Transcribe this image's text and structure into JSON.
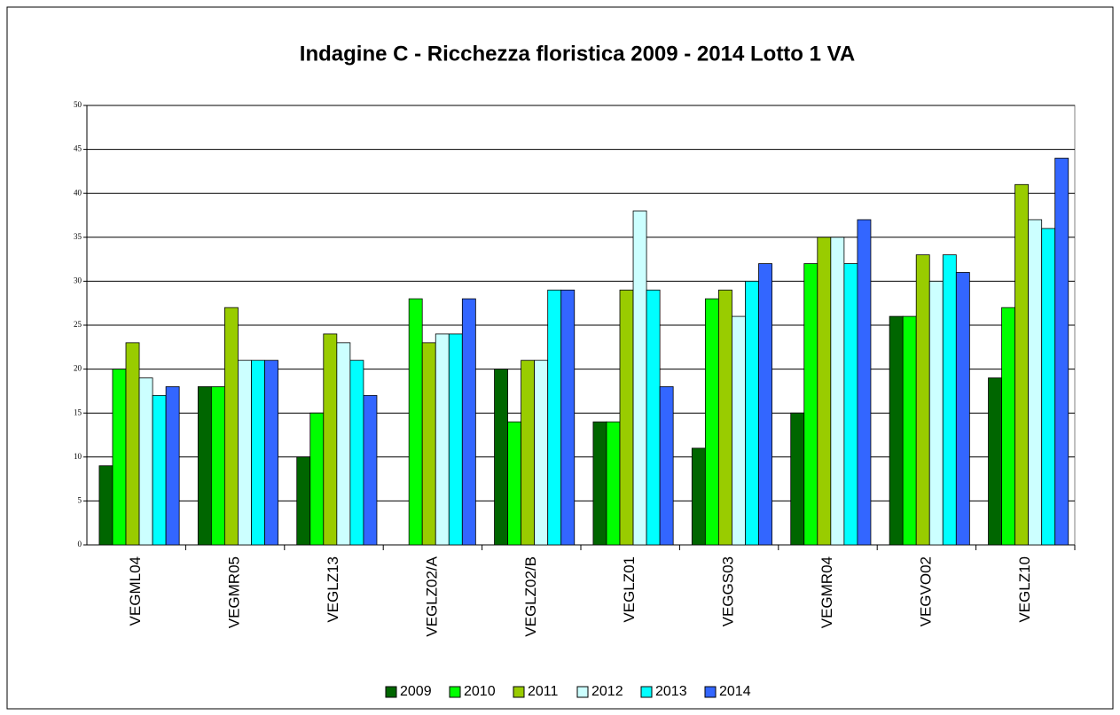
{
  "chart_data": {
    "type": "bar",
    "title": "Indagine C - Ricchezza floristica 2009 - 2014 Lotto 1 VA",
    "categories": [
      "VEGML04",
      "VEGMR05",
      "VEGLZ13",
      "VEGLZ02/A",
      "VEGLZ02/B",
      "VEGLZ01",
      "VEGGS03",
      "VEGMR04",
      "VEGVO02",
      "VEGLZ10"
    ],
    "series": [
      {
        "name": "2009",
        "color": "#006600",
        "values": [
          9,
          18,
          10,
          null,
          20,
          14,
          11,
          15,
          26,
          19
        ]
      },
      {
        "name": "2010",
        "color": "#00ff00",
        "values": [
          20,
          18,
          15,
          28,
          14,
          14,
          28,
          32,
          26,
          27
        ]
      },
      {
        "name": "2011",
        "color": "#99cc00",
        "values": [
          23,
          27,
          24,
          23,
          21,
          29,
          29,
          35,
          33,
          41
        ]
      },
      {
        "name": "2012",
        "color": "#ccffff",
        "values": [
          19,
          21,
          23,
          24,
          21,
          38,
          26,
          35,
          30,
          37
        ]
      },
      {
        "name": "2013",
        "color": "#00ffff",
        "values": [
          17,
          21,
          21,
          24,
          29,
          29,
          30,
          32,
          33,
          36
        ]
      },
      {
        "name": "2014",
        "color": "#3366ff",
        "values": [
          18,
          21,
          17,
          28,
          29,
          18,
          32,
          37,
          31,
          44
        ]
      }
    ],
    "ylim": [
      0,
      50
    ],
    "yticks": [
      0,
      5,
      10,
      15,
      20,
      25,
      30,
      35,
      40,
      45,
      50
    ],
    "grid": true,
    "legend": "bottom"
  }
}
